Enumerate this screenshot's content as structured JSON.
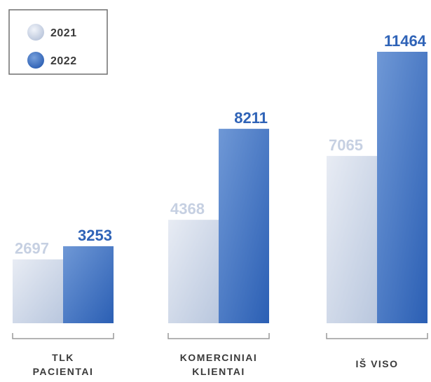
{
  "chart_data": {
    "type": "bar",
    "categories": [
      [
        "TLK",
        "PACIENTAI"
      ],
      [
        "KOMERCINIAI",
        "KLIENTAI"
      ],
      [
        "IŠ VISO"
      ]
    ],
    "series": [
      {
        "name": "2021",
        "values": [
          2697,
          4368,
          7065
        ],
        "color": "#d4dbe8"
      },
      {
        "name": "2022",
        "values": [
          3253,
          8211,
          11464
        ],
        "color": "#3a6bbb"
      }
    ],
    "xlabel": "",
    "ylabel": "",
    "ylim": [
      0,
      11464
    ],
    "grid": false,
    "legend_position": "top-left"
  }
}
